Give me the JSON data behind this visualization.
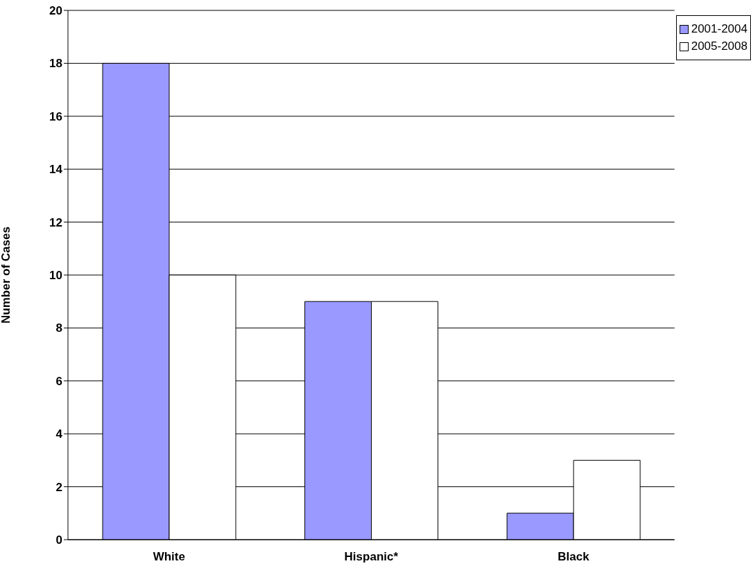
{
  "chart_data": {
    "type": "bar",
    "ylabel": "Number of Cases",
    "categories": [
      "White",
      "Hispanic*",
      "Black"
    ],
    "series": [
      {
        "name": "2001-2004",
        "color": "#9999ff",
        "values": [
          18,
          9,
          1
        ]
      },
      {
        "name": "2005-2008",
        "color": "#ffffff",
        "values": [
          10,
          9,
          3
        ]
      }
    ],
    "ylim": [
      0,
      20
    ],
    "yticks": [
      0,
      2,
      4,
      6,
      8,
      10,
      12,
      14,
      16,
      18,
      20
    ],
    "grid": "y",
    "legend": "top right"
  }
}
